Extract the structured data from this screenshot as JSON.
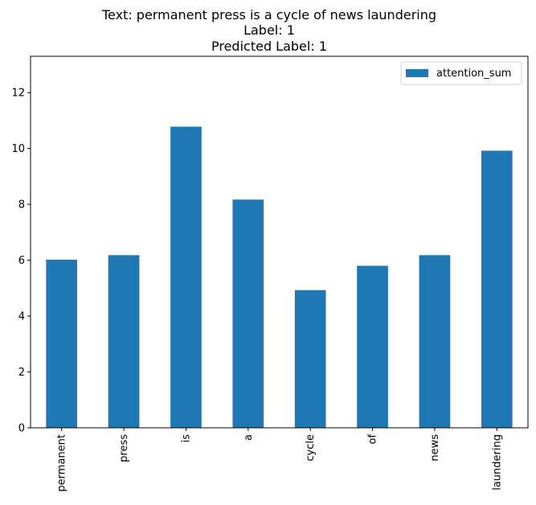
{
  "chart_data": {
    "type": "bar",
    "title_lines": [
      "Text: permanent press is a cycle of news laundering",
      "Label: 1",
      "Predicted Label: 1"
    ],
    "xlabel": "",
    "ylabel": "",
    "categories": [
      "permanent",
      "press",
      "is",
      "a",
      "cycle",
      "of",
      "news",
      "laundering"
    ],
    "series": [
      {
        "name": "attention_sum",
        "color": "#1f77b4",
        "values": [
          6.02,
          6.18,
          10.78,
          8.17,
          4.93,
          5.8,
          6.18,
          9.92
        ]
      }
    ],
    "ylim": [
      0,
      13.3
    ],
    "yticks": [
      0,
      2,
      4,
      6,
      8,
      10,
      12
    ],
    "grid": false,
    "legend_position": "top-right"
  }
}
